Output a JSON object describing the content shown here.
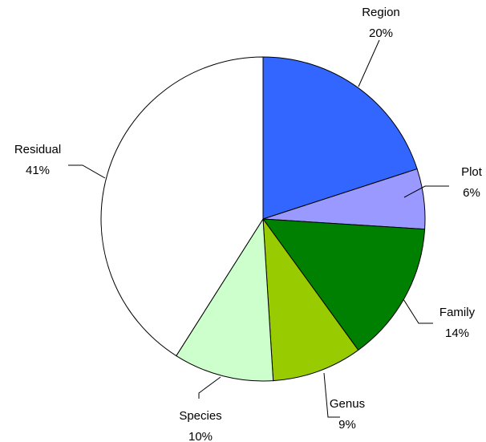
{
  "chart_data": {
    "type": "pie",
    "legend": "none",
    "start_angle_deg": 0,
    "direction": "clockwise",
    "slices": [
      {
        "label": "Region",
        "percent_label": "20%",
        "value": 20,
        "color": "#3366ff"
      },
      {
        "label": "Plot",
        "percent_label": "6%",
        "value": 6,
        "color": "#9999ff"
      },
      {
        "label": "Family",
        "percent_label": "14%",
        "value": 14,
        "color": "#008000"
      },
      {
        "label": "Genus",
        "percent_label": "9%",
        "value": 9,
        "color": "#99cc00"
      },
      {
        "label": "Species",
        "percent_label": "10%",
        "value": 10,
        "color": "#ccffcc"
      },
      {
        "label": "Residual",
        "percent_label": "41%",
        "value": 41,
        "color": "#ffffff"
      }
    ]
  }
}
